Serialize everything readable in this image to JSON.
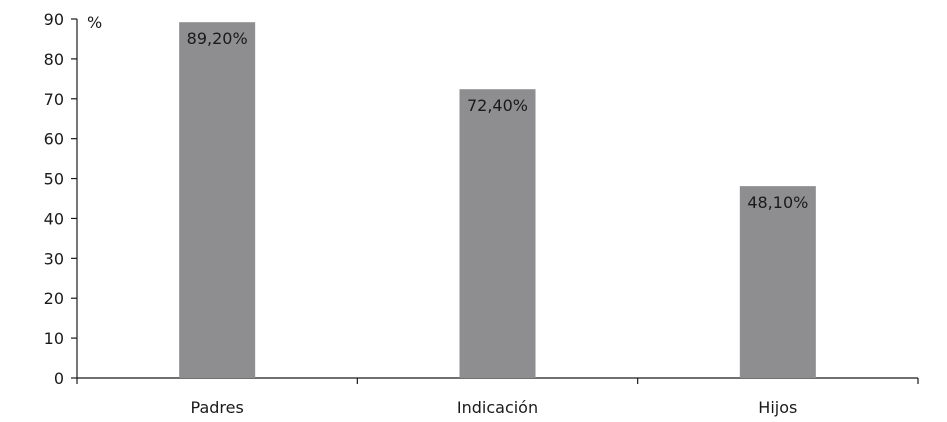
{
  "chart_data": {
    "type": "bar",
    "title": "",
    "xlabel": "",
    "ylabel": "",
    "y_unit_label": "%",
    "categories": [
      "Padres",
      "Indicación",
      "Hijos"
    ],
    "values": [
      89.2,
      72.4,
      48.1
    ],
    "data_labels": [
      "89,20%",
      "72,40%",
      "48,10%"
    ],
    "ylim": [
      0,
      90
    ],
    "yticks": [
      0,
      10,
      20,
      30,
      40,
      50,
      60,
      70,
      80,
      90
    ],
    "grid": false,
    "legend": "none",
    "bar_color": "#8e8e90",
    "axis_color": "#1a1a1a"
  }
}
